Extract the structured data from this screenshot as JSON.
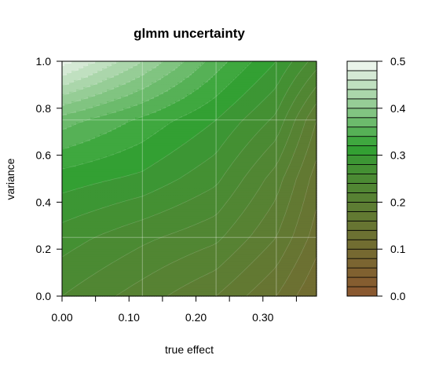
{
  "chart_data": {
    "type": "filled-contour",
    "title": "glmm uncertainty",
    "xlabel": "true effect",
    "ylabel": "variance",
    "xlim": [
      0.0,
      0.38
    ],
    "ylim": [
      0.0,
      1.0
    ],
    "x_ticks": [
      "0.00",
      "0.10",
      "0.20",
      "0.30"
    ],
    "x_tick_values": [
      0.0,
      0.1,
      0.2,
      0.3
    ],
    "x_minor_ticks": [
      0.05,
      0.15,
      0.25,
      0.35
    ],
    "y_ticks": [
      "0.0",
      "0.2",
      "0.4",
      "0.6",
      "0.8",
      "1.0"
    ],
    "y_tick_values": [
      0.0,
      0.2,
      0.4,
      0.6,
      0.8,
      1.0
    ],
    "grid": {
      "x": [
        0.12,
        0.23,
        0.32
      ],
      "y": [
        0.25,
        0.75
      ]
    },
    "grid_x": [
      0.0,
      0.12,
      0.23,
      0.32,
      0.38
    ],
    "grid_y": [
      0.0,
      0.25,
      0.5,
      0.75,
      1.0
    ],
    "z": [
      [
        0.24,
        0.21,
        0.18,
        0.14,
        0.1
      ],
      [
        0.27,
        0.245,
        0.225,
        0.18,
        0.13
      ],
      [
        0.31,
        0.295,
        0.265,
        0.21,
        0.15
      ],
      [
        0.37,
        0.335,
        0.3,
        0.255,
        0.18
      ],
      [
        0.49,
        0.42,
        0.35,
        0.3,
        0.25
      ]
    ],
    "levels": [
      0.0,
      0.02,
      0.04,
      0.06,
      0.08,
      0.1,
      0.12,
      0.14,
      0.16,
      0.18,
      0.2,
      0.22,
      0.24,
      0.26,
      0.28,
      0.3,
      0.32,
      0.34,
      0.36,
      0.38,
      0.4,
      0.42,
      0.44,
      0.46,
      0.48,
      0.5
    ],
    "level_colors": [
      "#8a5930",
      "#855d30",
      "#806130",
      "#7b6531",
      "#766931",
      "#716d31",
      "#6c7132",
      "#677532",
      "#627932",
      "#5d7d33",
      "#578233",
      "#518633",
      "#4b8a33",
      "#449033",
      "#3c9634",
      "#33a033",
      "#3fa83f",
      "#56b156",
      "#6cbb6c",
      "#81c481",
      "#96cd96",
      "#abd6ab",
      "#c0e0c0",
      "#d5e9d5",
      "#eaf4ea"
    ],
    "colorbar_ticks": [
      "0.0",
      "0.1",
      "0.2",
      "0.3",
      "0.4",
      "0.5"
    ],
    "colorbar_tick_values": [
      0.0,
      0.1,
      0.2,
      0.3,
      0.4,
      0.5
    ]
  }
}
